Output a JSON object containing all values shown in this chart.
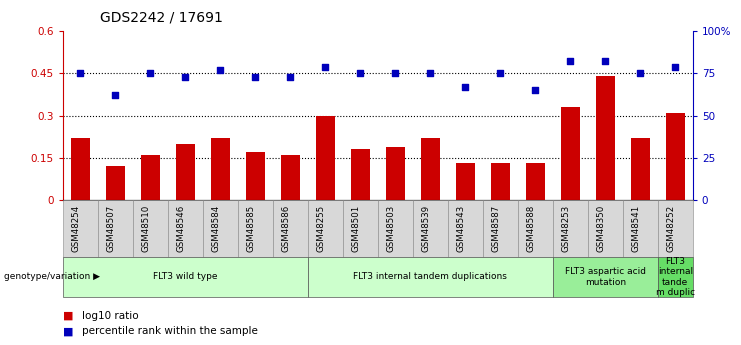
{
  "title": "GDS2242 / 17691",
  "categories": [
    "GSM48254",
    "GSM48507",
    "GSM48510",
    "GSM48546",
    "GSM48584",
    "GSM48585",
    "GSM48586",
    "GSM48255",
    "GSM48501",
    "GSM48503",
    "GSM48539",
    "GSM48543",
    "GSM48587",
    "GSM48588",
    "GSM48253",
    "GSM48350",
    "GSM48541",
    "GSM48252"
  ],
  "bar_values": [
    0.22,
    0.12,
    0.16,
    0.2,
    0.22,
    0.17,
    0.16,
    0.3,
    0.18,
    0.19,
    0.22,
    0.13,
    0.13,
    0.13,
    0.33,
    0.44,
    0.22,
    0.31
  ],
  "dot_values_pct": [
    75,
    62,
    75,
    73,
    77,
    73,
    73,
    79,
    75,
    75,
    75,
    67,
    75,
    65,
    82,
    82,
    75,
    79
  ],
  "bar_color": "#cc0000",
  "dot_color": "#0000bb",
  "ylim_left": [
    0,
    0.6
  ],
  "ylim_right": [
    0,
    100
  ],
  "yticks_left": [
    0,
    0.15,
    0.3,
    0.45,
    0.6
  ],
  "ytick_labels_left": [
    "0",
    "0.15",
    "0.3",
    "0.45",
    "0.6"
  ],
  "yticks_right": [
    0,
    25,
    50,
    75,
    100
  ],
  "ytick_labels_right": [
    "0",
    "25",
    "50",
    "75",
    "100%"
  ],
  "hlines": [
    0.15,
    0.3,
    0.45
  ],
  "group_labels": [
    {
      "label": "FLT3 wild type",
      "start": 0,
      "end": 7,
      "color": "#ccffcc"
    },
    {
      "label": "FLT3 internal tandem duplications",
      "start": 7,
      "end": 14,
      "color": "#ccffcc"
    },
    {
      "label": "FLT3 aspartic acid\nmutation",
      "start": 14,
      "end": 17,
      "color": "#99ee99"
    },
    {
      "label": "FLT3\ninternal\ntande\nm duplic",
      "start": 17,
      "end": 18,
      "color": "#66dd66"
    }
  ],
  "legend_items": [
    {
      "label": "log10 ratio",
      "color": "#cc0000"
    },
    {
      "label": "percentile rank within the sample",
      "color": "#0000bb"
    }
  ],
  "genotype_label": "genotype/variation",
  "bar_width": 0.55
}
